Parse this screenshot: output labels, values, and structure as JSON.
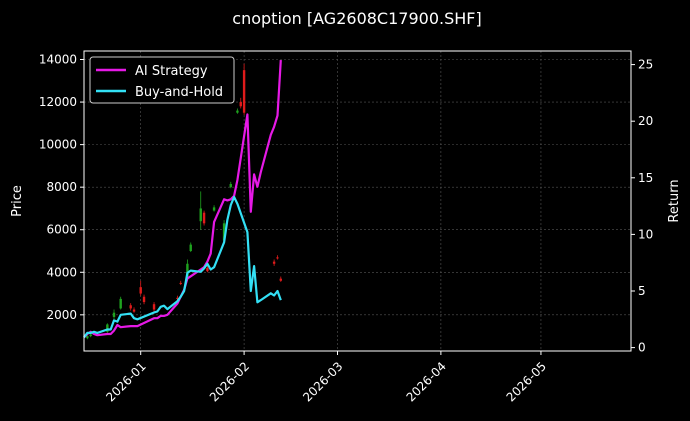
{
  "chart_data": {
    "type": "line",
    "title": "cnoption [AG2608C17900.SHF]",
    "ylabel_left": "Price",
    "ylabel_right": "Return",
    "x_range": [
      "2025-12-15",
      "2026-05-28"
    ],
    "x_ticks": [
      "2026-01-01",
      "2026-02-01",
      "2026-03-01",
      "2026-04-01",
      "2026-05-01"
    ],
    "x_tick_labels": [
      "2026-01",
      "2026-02",
      "2026-03",
      "2026-04",
      "2026-05"
    ],
    "y_left_range": [
      300,
      14400
    ],
    "y_left_ticks": [
      2000,
      4000,
      6000,
      8000,
      10000,
      12000,
      14000
    ],
    "y_right_range": [
      -0.3,
      26.2
    ],
    "y_right_ticks": [
      0,
      5,
      10,
      15,
      20,
      25
    ],
    "grid": true,
    "legend_position": "top-left",
    "colors": {
      "ai": "#e619e6",
      "bh": "#33e0f5",
      "up": "#1fa31f",
      "down": "#e01b1b",
      "background": "#000000",
      "grid": "#555555"
    },
    "series": [
      {
        "name": "AI Strategy",
        "axis": "right",
        "x": [
          "2025-12-15",
          "2025-12-16",
          "2025-12-17",
          "2025-12-18",
          "2025-12-19",
          "2025-12-22",
          "2025-12-23",
          "2025-12-24",
          "2025-12-25",
          "2025-12-26",
          "2025-12-29",
          "2025-12-30",
          "2025-12-31",
          "2026-01-05",
          "2026-01-06",
          "2026-01-07",
          "2026-01-08",
          "2026-01-09",
          "2026-01-12",
          "2026-01-13",
          "2026-01-14",
          "2026-01-15",
          "2026-01-16",
          "2026-01-19",
          "2026-01-20",
          "2026-01-21",
          "2026-01-22",
          "2026-01-23",
          "2026-01-26",
          "2026-01-27",
          "2026-01-28",
          "2026-01-29",
          "2026-01-30",
          "2026-02-02",
          "2026-02-03",
          "2026-02-04",
          "2026-02-05",
          "2026-02-06",
          "2026-02-09",
          "2026-02-10",
          "2026-02-11",
          "2026-02-12"
        ],
        "values": [
          0.9,
          1.2,
          1.4,
          1.2,
          1.1,
          1.2,
          1.2,
          1.5,
          2.0,
          1.8,
          1.9,
          1.9,
          1.9,
          2.6,
          2.6,
          2.8,
          2.8,
          2.9,
          3.9,
          4.5,
          5.1,
          6.1,
          6.3,
          6.9,
          7.1,
          7.6,
          8.3,
          11.1,
          13.1,
          13.0,
          13.1,
          13.4,
          14.8,
          20.6,
          12.0,
          15.3,
          14.2,
          15.5,
          18.8,
          19.5,
          20.5,
          25.4
        ]
      },
      {
        "name": "Buy-and-Hold",
        "axis": "right",
        "x": [
          "2025-12-15",
          "2025-12-16",
          "2025-12-17",
          "2025-12-18",
          "2025-12-19",
          "2025-12-22",
          "2025-12-23",
          "2025-12-24",
          "2025-12-25",
          "2025-12-26",
          "2025-12-29",
          "2025-12-30",
          "2025-12-31",
          "2026-01-05",
          "2026-01-06",
          "2026-01-07",
          "2026-01-08",
          "2026-01-09",
          "2026-01-12",
          "2026-01-13",
          "2026-01-14",
          "2026-01-15",
          "2026-01-16",
          "2026-01-19",
          "2026-01-20",
          "2026-01-21",
          "2026-01-22",
          "2026-01-23",
          "2026-01-26",
          "2026-01-27",
          "2026-01-28",
          "2026-01-29",
          "2026-01-30",
          "2026-02-02",
          "2026-02-03",
          "2026-02-04",
          "2026-02-05",
          "2026-02-06",
          "2026-02-09",
          "2026-02-10",
          "2026-02-11",
          "2026-02-12"
        ],
        "values": [
          0.9,
          1.3,
          1.3,
          1.4,
          1.3,
          1.6,
          1.6,
          2.4,
          2.3,
          2.9,
          3.0,
          2.6,
          2.5,
          3.1,
          3.2,
          3.6,
          3.7,
          3.4,
          4.1,
          4.5,
          5.0,
          6.6,
          6.8,
          6.7,
          7.0,
          7.4,
          6.9,
          7.1,
          9.3,
          11.3,
          12.6,
          13.3,
          12.7,
          10.2,
          5.0,
          7.2,
          4.0,
          4.2,
          4.8,
          4.6,
          5.0,
          4.2
        ]
      }
    ],
    "candles": [
      {
        "x": "2025-12-16",
        "open": 900,
        "close": 1000,
        "low": 850,
        "high": 1050
      },
      {
        "x": "2025-12-17",
        "open": 1000,
        "close": 1080,
        "low": 950,
        "high": 1120
      },
      {
        "x": "2025-12-22",
        "open": 1200,
        "close": 1550,
        "low": 1150,
        "high": 1600
      },
      {
        "x": "2025-12-24",
        "open": 1900,
        "close": 2100,
        "low": 1800,
        "high": 2250
      },
      {
        "x": "2025-12-26",
        "open": 2300,
        "close": 2750,
        "low": 2250,
        "high": 2850
      },
      {
        "x": "2025-12-29",
        "open": 2450,
        "close": 2300,
        "low": 2200,
        "high": 2550
      },
      {
        "x": "2025-12-30",
        "open": 2250,
        "close": 2150,
        "low": 2100,
        "high": 2350
      },
      {
        "x": "2026-01-01",
        "open": 3300,
        "close": 3000,
        "low": 2900,
        "high": 3600
      },
      {
        "x": "2026-01-02",
        "open": 2850,
        "close": 2600,
        "low": 2500,
        "high": 2950
      },
      {
        "x": "2026-01-05",
        "open": 2500,
        "close": 2250,
        "low": 2150,
        "high": 2600
      },
      {
        "x": "2026-01-12",
        "open": 2800,
        "close": 2750,
        "low": 2700,
        "high": 2900
      },
      {
        "x": "2026-01-13",
        "open": 3500,
        "close": 3450,
        "low": 3400,
        "high": 3600
      },
      {
        "x": "2026-01-15",
        "open": 3700,
        "close": 4400,
        "low": 3600,
        "high": 4600
      },
      {
        "x": "2026-01-16",
        "open": 5000,
        "close": 5300,
        "low": 4950,
        "high": 5400
      },
      {
        "x": "2026-01-19",
        "open": 6400,
        "close": 7000,
        "low": 6000,
        "high": 7800
      },
      {
        "x": "2026-01-20",
        "open": 6800,
        "close": 6300,
        "low": 6200,
        "high": 6900
      },
      {
        "x": "2026-01-21",
        "open": 4200,
        "close": 4050,
        "low": 4000,
        "high": 4300
      },
      {
        "x": "2026-01-23",
        "open": 6900,
        "close": 7050,
        "low": 6850,
        "high": 7150
      },
      {
        "x": "2026-01-26",
        "open": 5500,
        "close": 6300,
        "low": 5400,
        "high": 6450
      },
      {
        "x": "2026-01-28",
        "open": 8000,
        "close": 8150,
        "low": 7950,
        "high": 8250
      },
      {
        "x": "2026-01-30",
        "open": 11500,
        "close": 11600,
        "low": 11450,
        "high": 11700
      },
      {
        "x": "2026-01-31",
        "open": 12000,
        "close": 11800,
        "low": 11700,
        "high": 12200
      },
      {
        "x": "2026-02-01",
        "open": 13500,
        "close": 11500,
        "low": 11400,
        "high": 13800
      },
      {
        "x": "2026-02-10",
        "open": 4500,
        "close": 4400,
        "low": 4300,
        "high": 4600
      },
      {
        "x": "2026-02-11",
        "open": 4700,
        "close": 4650,
        "low": 4600,
        "high": 4800
      },
      {
        "x": "2026-02-12",
        "open": 3700,
        "close": 3600,
        "low": 3550,
        "high": 3800
      }
    ]
  }
}
